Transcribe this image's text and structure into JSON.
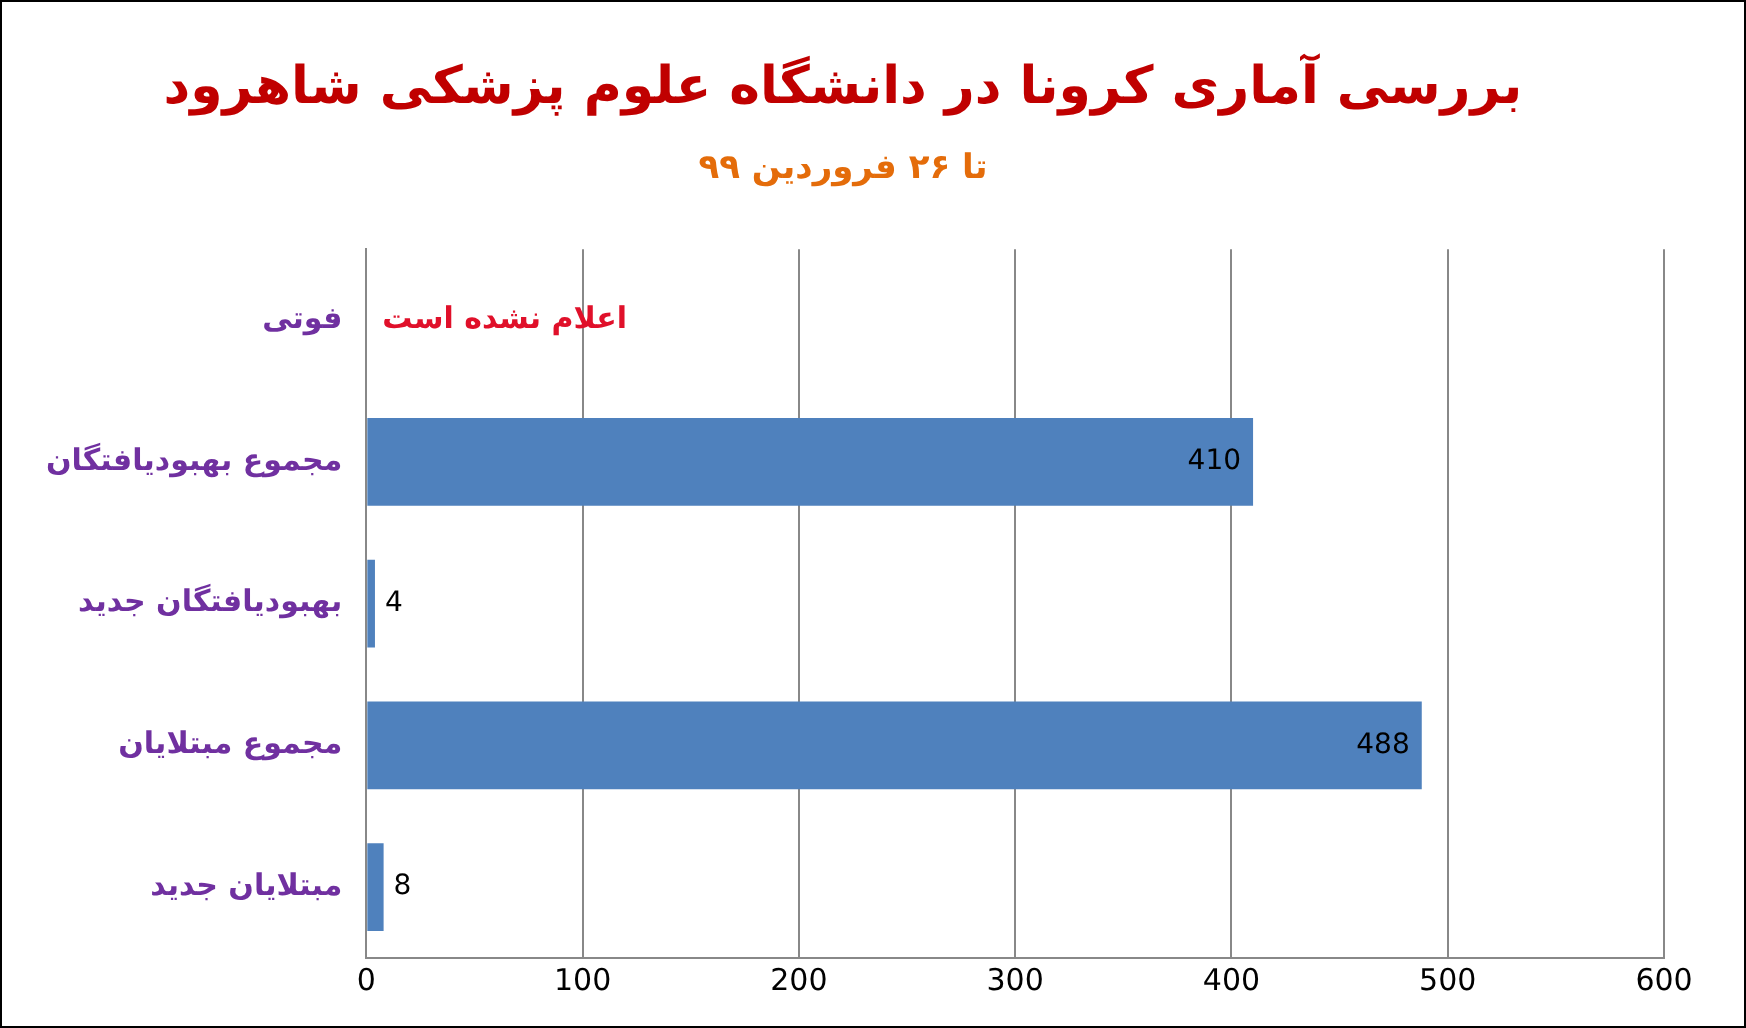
{
  "chart_data": {
    "type": "bar",
    "orientation": "horizontal",
    "title": "بررسی آماری کرونا در دانشگاه علوم پزشکی شاهرود",
    "subtitle": "تا ۲۶ فروردین ۹۹",
    "categories": [
      "فوتی",
      "مجموع بهبودیافتگان",
      "بهبودیافتگان جدید",
      "مجموع مبتلایان",
      "مبتلایان جدید"
    ],
    "values": [
      null,
      410,
      4,
      488,
      8
    ],
    "color": "#4f81bd",
    "xlim": [
      0,
      600
    ],
    "xticks": [
      0,
      100,
      200,
      300,
      400,
      500,
      600
    ],
    "grid": "x",
    "legend": false,
    "data_labels": true,
    "annotations": [
      "اعلام نشده است"
    ]
  }
}
